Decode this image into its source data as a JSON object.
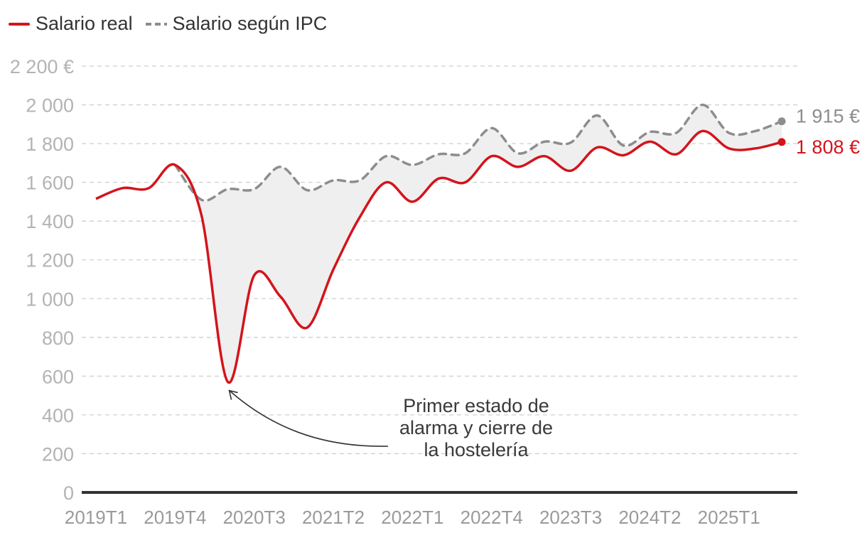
{
  "chart_data": {
    "type": "line",
    "title": "",
    "xlabel": "",
    "ylabel": "",
    "ylim": [
      0,
      2200
    ],
    "yticks": [
      0,
      200,
      400,
      600,
      800,
      1000,
      1200,
      1400,
      1600,
      1800,
      2000,
      2200
    ],
    "ytick_labels": [
      "0",
      "200",
      "400",
      "600",
      "800",
      "1 000",
      "1 200",
      "1 400",
      "1 600",
      "1 800",
      "2 000",
      "2 200 €"
    ],
    "grid": true,
    "legend_position": "top-left",
    "x": [
      "2019T1",
      "2019T2",
      "2019T3",
      "2019T4",
      "2020T1",
      "2020T2",
      "2020T3",
      "2020T4",
      "2021T1",
      "2021T2",
      "2021T3",
      "2021T4",
      "2022T1",
      "2022T2",
      "2022T3",
      "2022T4",
      "2023T1",
      "2023T2",
      "2023T3",
      "2023T4",
      "2024T1",
      "2024T2",
      "2024T3",
      "2024T4",
      "2025T1",
      "2025T2",
      "2025T3"
    ],
    "xtick_labels": [
      "2019T1",
      "2019T4",
      "2020T3",
      "2021T2",
      "2022T1",
      "2022T4",
      "2023T3",
      "2024T2",
      "2025T1"
    ],
    "series": [
      {
        "name": "Salario real",
        "color": "#d4141b",
        "style": "solid",
        "values": [
          1515,
          1570,
          1570,
          1690,
          1430,
          570,
          1120,
          1010,
          850,
          1150,
          1420,
          1600,
          1500,
          1620,
          1600,
          1735,
          1680,
          1735,
          1660,
          1780,
          1740,
          1810,
          1745,
          1865,
          1775,
          1775,
          1808
        ],
        "end_label": "1 808 €"
      },
      {
        "name": "Salario según IPC",
        "color": "#8d8d8d",
        "style": "dashed",
        "values": [
          null,
          null,
          null,
          1690,
          1510,
          1565,
          1565,
          1680,
          1560,
          1610,
          1610,
          1735,
          1690,
          1745,
          1750,
          1880,
          1750,
          1810,
          1805,
          1945,
          1790,
          1860,
          1855,
          2000,
          1855,
          1865,
          1915
        ],
        "end_label": "1 915 €"
      }
    ],
    "annotations": [
      {
        "text_lines": [
          "Primer estado de",
          "alarma y cierre de",
          "la hostelería"
        ],
        "target_x": "2020T2"
      }
    ]
  }
}
